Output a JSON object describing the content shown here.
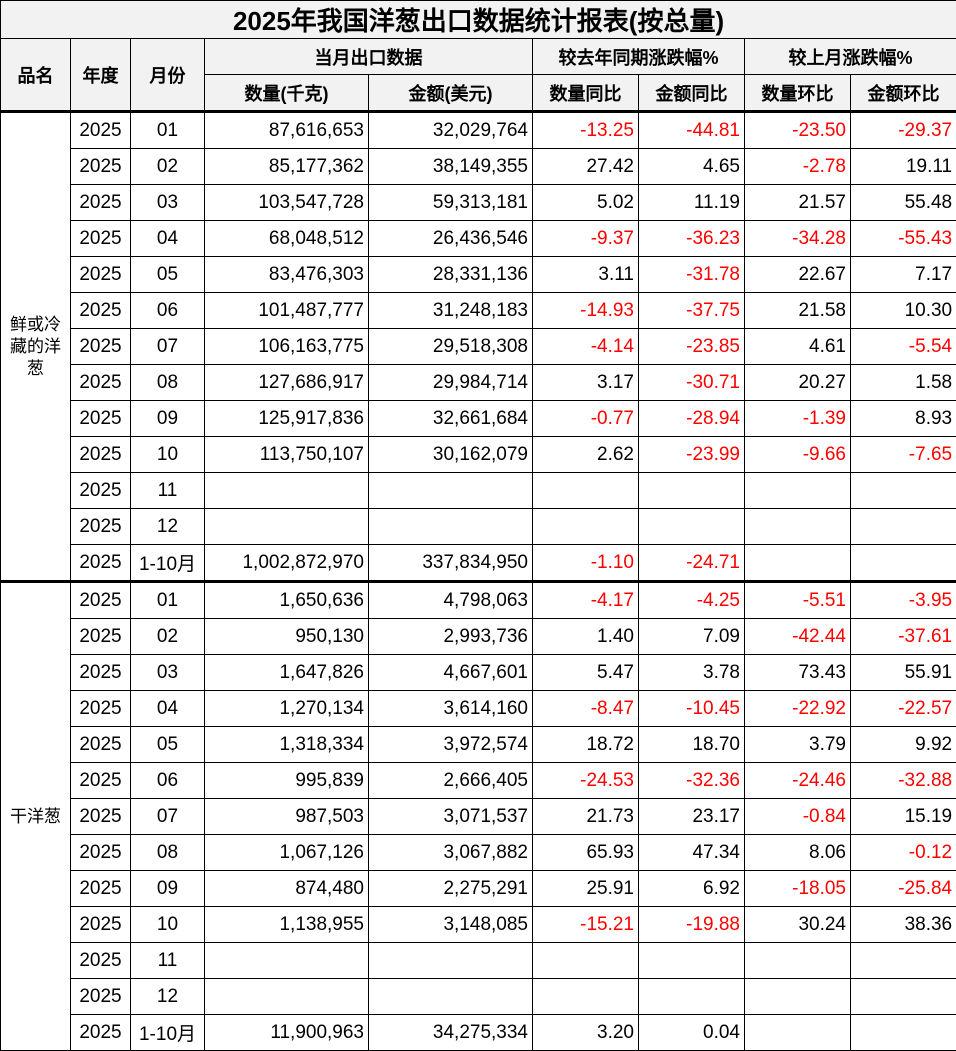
{
  "title": "2025年我国洋葱出口数据统计报表(按总量)",
  "headers": {
    "product": "品名",
    "year": "年度",
    "month": "月份",
    "monthly_export": "当月出口数据",
    "yoy_group": "较去年同期涨跌幅%",
    "mom_group": "较上月涨跌幅%",
    "quantity": "数量(千克)",
    "amount": "金额(美元)",
    "qty_yoy": "数量同比",
    "amt_yoy": "金额同比",
    "qty_mom": "数量环比",
    "amt_mom": "金额环比"
  },
  "negative_color": "#ff0000",
  "groups": [
    {
      "product": "鲜或冷藏的洋葱",
      "rows": [
        [
          "2025",
          "01",
          "87,616,653",
          "32,029,764",
          "-13.25",
          "-44.81",
          "-23.50",
          "-29.37"
        ],
        [
          "2025",
          "02",
          "85,177,362",
          "38,149,355",
          "27.42",
          "4.65",
          "-2.78",
          "19.11"
        ],
        [
          "2025",
          "03",
          "103,547,728",
          "59,313,181",
          "5.02",
          "11.19",
          "21.57",
          "55.48"
        ],
        [
          "2025",
          "04",
          "68,048,512",
          "26,436,546",
          "-9.37",
          "-36.23",
          "-34.28",
          "-55.43"
        ],
        [
          "2025",
          "05",
          "83,476,303",
          "28,331,136",
          "3.11",
          "-31.78",
          "22.67",
          "7.17"
        ],
        [
          "2025",
          "06",
          "101,487,777",
          "31,248,183",
          "-14.93",
          "-37.75",
          "21.58",
          "10.30"
        ],
        [
          "2025",
          "07",
          "106,163,775",
          "29,518,308",
          "-4.14",
          "-23.85",
          "4.61",
          "-5.54"
        ],
        [
          "2025",
          "08",
          "127,686,917",
          "29,984,714",
          "3.17",
          "-30.71",
          "20.27",
          "1.58"
        ],
        [
          "2025",
          "09",
          "125,917,836",
          "32,661,684",
          "-0.77",
          "-28.94",
          "-1.39",
          "8.93"
        ],
        [
          "2025",
          "10",
          "113,750,107",
          "30,162,079",
          "2.62",
          "-23.99",
          "-9.66",
          "-7.65"
        ],
        [
          "2025",
          "11",
          "",
          "",
          "",
          "",
          "",
          ""
        ],
        [
          "2025",
          "12",
          "",
          "",
          "",
          "",
          "",
          ""
        ],
        [
          "2025",
          "1-10月",
          "1,002,872,970",
          "337,834,950",
          "-1.10",
          "-24.71",
          "",
          ""
        ]
      ]
    },
    {
      "product": "干洋葱",
      "rows": [
        [
          "2025",
          "01",
          "1,650,636",
          "4,798,063",
          "-4.17",
          "-4.25",
          "-5.51",
          "-3.95"
        ],
        [
          "2025",
          "02",
          "950,130",
          "2,993,736",
          "1.40",
          "7.09",
          "-42.44",
          "-37.61"
        ],
        [
          "2025",
          "03",
          "1,647,826",
          "4,667,601",
          "5.47",
          "3.78",
          "73.43",
          "55.91"
        ],
        [
          "2025",
          "04",
          "1,270,134",
          "3,614,160",
          "-8.47",
          "-10.45",
          "-22.92",
          "-22.57"
        ],
        [
          "2025",
          "05",
          "1,318,334",
          "3,972,574",
          "18.72",
          "18.70",
          "3.79",
          "9.92"
        ],
        [
          "2025",
          "06",
          "995,839",
          "2,666,405",
          "-24.53",
          "-32.36",
          "-24.46",
          "-32.88"
        ],
        [
          "2025",
          "07",
          "987,503",
          "3,071,537",
          "21.73",
          "23.17",
          "-0.84",
          "15.19"
        ],
        [
          "2025",
          "08",
          "1,067,126",
          "3,067,882",
          "65.93",
          "47.34",
          "8.06",
          "-0.12"
        ],
        [
          "2025",
          "09",
          "874,480",
          "2,275,291",
          "25.91",
          "6.92",
          "-18.05",
          "-25.84"
        ],
        [
          "2025",
          "10",
          "1,138,955",
          "3,148,085",
          "-15.21",
          "-19.88",
          "30.24",
          "38.36"
        ],
        [
          "2025",
          "11",
          "",
          "",
          "",
          "",
          "",
          ""
        ],
        [
          "2025",
          "12",
          "",
          "",
          "",
          "",
          "",
          ""
        ],
        [
          "2025",
          "1-10月",
          "11,900,963",
          "34,275,334",
          "3.20",
          "0.04",
          "",
          ""
        ]
      ]
    }
  ]
}
